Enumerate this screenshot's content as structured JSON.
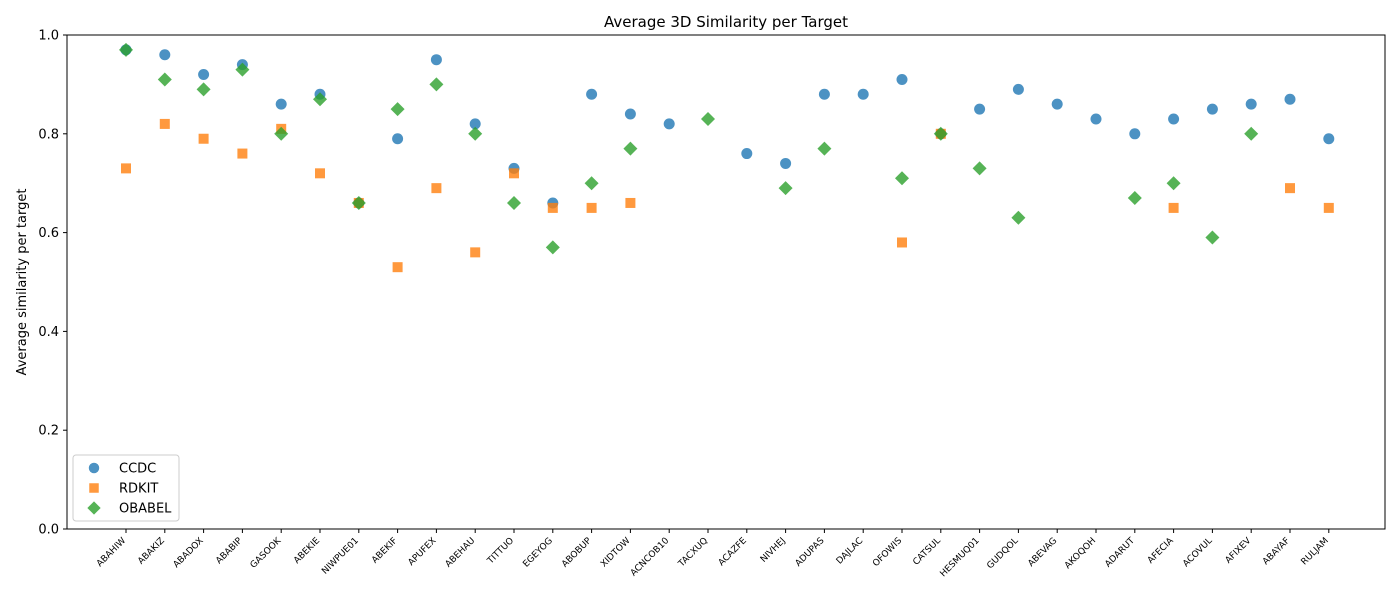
{
  "chart_data": {
    "type": "scatter",
    "title": "Average 3D Similarity per Target",
    "xlabel": "",
    "ylabel": "Average similarity per target",
    "ylim": [
      0,
      1.0
    ],
    "yticks": [
      0.0,
      0.2,
      0.4,
      0.6,
      0.8,
      1.0
    ],
    "ytick_labels": [
      "0.0",
      "0.2",
      "0.4",
      "0.6",
      "0.8",
      "1.0"
    ],
    "grid": false,
    "legend_position": "lower-left",
    "categories": [
      "ABAHIW",
      "ABAKIZ",
      "ABADOX",
      "ABABIP",
      "GASOOK",
      "ABEKIE",
      "NIWPUE01",
      "ABEKIF",
      "APUFEX",
      "ABEHAU",
      "TITTUO",
      "EGEYOG",
      "ABOBUP",
      "XIDTOW",
      "ACNCOB10",
      "TACXUQ",
      "ACAZFE",
      "NIVHEJ",
      "ADUPAS",
      "DAJLAC",
      "OFOWIS",
      "CATSUL",
      "HESMUQ01",
      "GUDQOL",
      "ABEVAG",
      "AKOQOH",
      "ADARUT",
      "AFECIA",
      "ACOVUL",
      "AFIXEV",
      "ABAYAF",
      "RULJAM"
    ],
    "series": [
      {
        "name": "CCDC",
        "color": "#1f77b4",
        "marker": "circle",
        "values": [
          0.97,
          0.96,
          0.92,
          0.94,
          0.86,
          0.88,
          0.66,
          0.79,
          0.95,
          0.82,
          0.73,
          0.66,
          0.88,
          0.84,
          0.82,
          null,
          0.76,
          0.74,
          0.88,
          0.88,
          0.91,
          0.8,
          0.85,
          0.89,
          0.86,
          0.83,
          0.8,
          0.83,
          0.85,
          0.86,
          0.87,
          0.79
        ]
      },
      {
        "name": "RDKIT",
        "color": "#ff7f0e",
        "marker": "square",
        "values": [
          0.73,
          0.82,
          0.79,
          0.76,
          0.81,
          0.72,
          0.66,
          0.53,
          0.69,
          0.56,
          0.72,
          0.65,
          0.65,
          0.66,
          null,
          null,
          null,
          null,
          null,
          null,
          0.58,
          0.8,
          null,
          null,
          null,
          null,
          null,
          0.65,
          null,
          null,
          0.69,
          0.65
        ]
      },
      {
        "name": "OBABEL",
        "color": "#2ca02c",
        "marker": "diamond",
        "values": [
          0.97,
          0.91,
          0.89,
          0.93,
          0.8,
          0.87,
          0.66,
          0.85,
          0.9,
          0.8,
          0.66,
          0.57,
          0.7,
          0.77,
          null,
          0.83,
          null,
          0.69,
          0.77,
          null,
          0.71,
          0.8,
          0.73,
          0.63,
          null,
          null,
          0.67,
          0.7,
          0.59,
          0.8,
          null,
          null
        ]
      }
    ]
  }
}
